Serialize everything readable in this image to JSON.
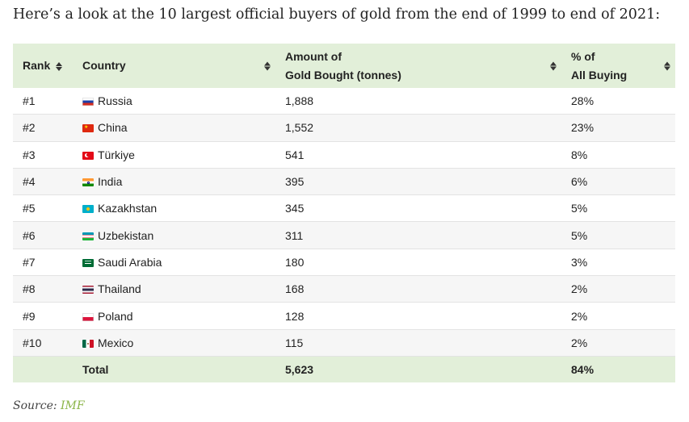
{
  "intro": "Here’s a look at the 10 largest official buyers of gold from the end of 1999 to end of 2021:",
  "table": {
    "headers": {
      "rank": "Rank",
      "country": "Country",
      "amount_line1": "Amount of",
      "amount_line2": "Gold Bought (tonnes)",
      "pct_line1": "% of",
      "pct_line2": "All Buying"
    },
    "rows": [
      {
        "rank": "#1",
        "country": "Russia",
        "flag": "russia-flag",
        "amount": "1,888",
        "pct": "28%"
      },
      {
        "rank": "#2",
        "country": "China",
        "flag": "china-flag",
        "amount": "1,552",
        "pct": "23%"
      },
      {
        "rank": "#3",
        "country": "Türkiye",
        "flag": "turkiye-flag",
        "amount": "541",
        "pct": "8%"
      },
      {
        "rank": "#4",
        "country": "India",
        "flag": "india-flag",
        "amount": "395",
        "pct": "6%"
      },
      {
        "rank": "#5",
        "country": "Kazakhstan",
        "flag": "kazakhstan-flag",
        "amount": "345",
        "pct": "5%"
      },
      {
        "rank": "#6",
        "country": "Uzbekistan",
        "flag": "uzbekistan-flag",
        "amount": "311",
        "pct": "5%"
      },
      {
        "rank": "#7",
        "country": "Saudi Arabia",
        "flag": "saudi-arabia-flag",
        "amount": "180",
        "pct": "3%"
      },
      {
        "rank": "#8",
        "country": "Thailand",
        "flag": "thailand-flag",
        "amount": "168",
        "pct": "2%"
      },
      {
        "rank": "#9",
        "country": "Poland",
        "flag": "poland-flag",
        "amount": "128",
        "pct": "2%"
      },
      {
        "rank": "#10",
        "country": "Mexico",
        "flag": "mexico-flag",
        "amount": "115",
        "pct": "2%"
      }
    ],
    "total": {
      "label": "Total",
      "amount": "5,623",
      "pct": "84%"
    }
  },
  "source": {
    "label": "Source:",
    "link": "IMF"
  },
  "colors": {
    "header_bg": "#e2efd9",
    "link": "#8bb548"
  }
}
